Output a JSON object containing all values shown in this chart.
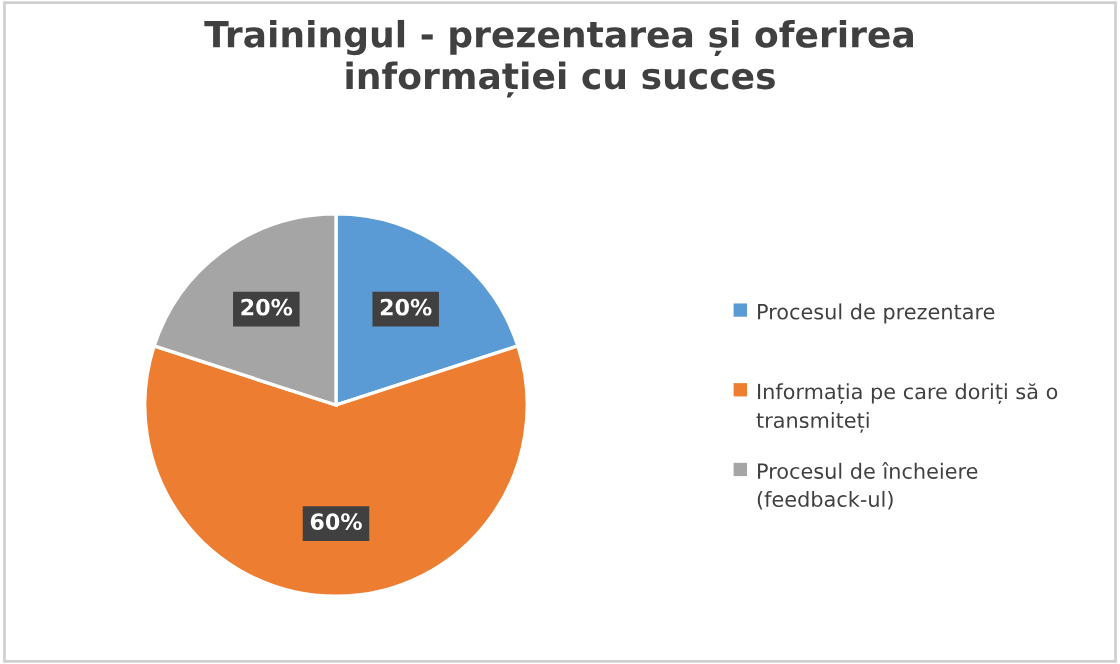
{
  "chart_data": {
    "type": "pie",
    "title": "Trainingul - prezentarea și oferirea informației cu succes",
    "categories": [
      "Procesul de prezentare",
      "Informația pe care doriți să o transmiteți",
      "Procesul de încheiere (feedback-ul)"
    ],
    "values": [
      20,
      60,
      20
    ],
    "colors": [
      "#5b9bd5",
      "#ed7d31",
      "#a5a5a5"
    ],
    "value_labels": [
      "20%",
      "60%",
      "20%"
    ],
    "legend": "right"
  }
}
